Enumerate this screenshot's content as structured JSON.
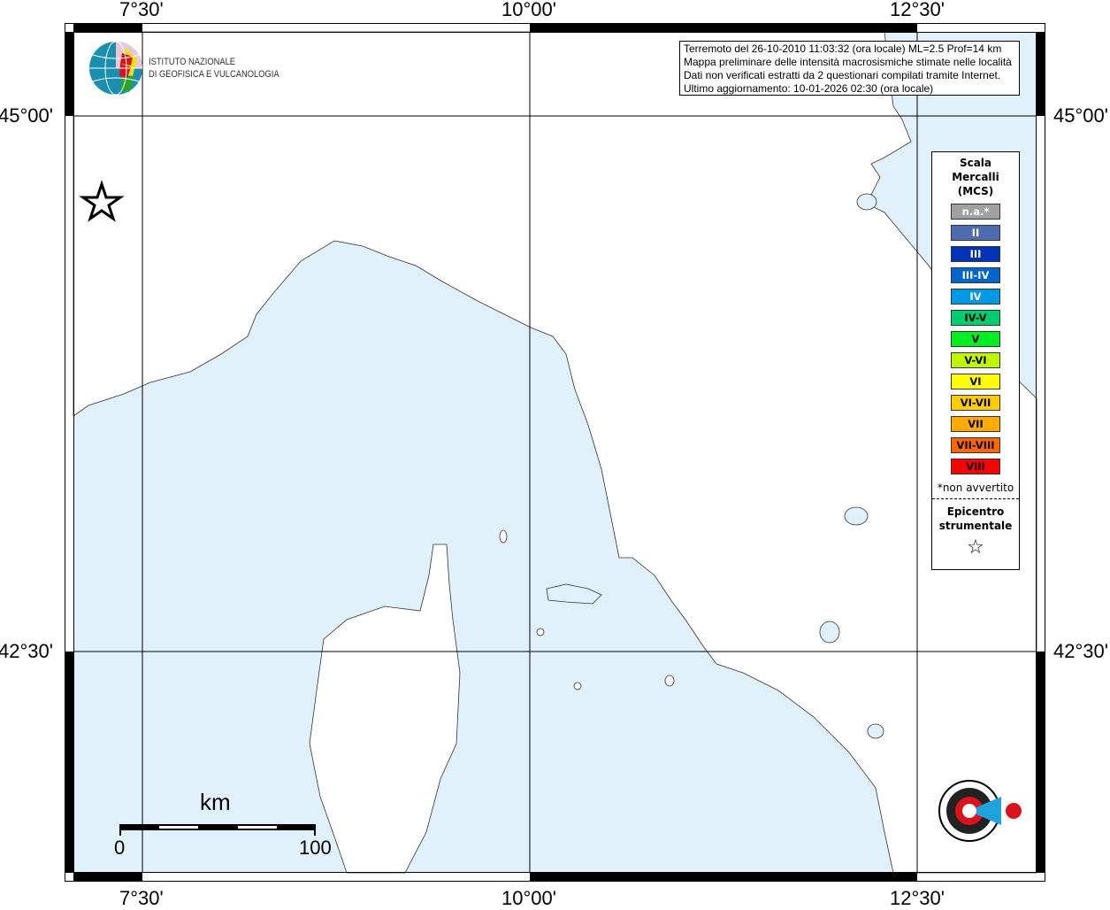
{
  "axes": {
    "lon_ticks": [
      "7°30'",
      "10°00'",
      "12°30'"
    ],
    "lat_ticks": [
      "45°00'",
      "42°30'"
    ]
  },
  "info": {
    "line1": "Terremoto del 26-10-2010 11:03:32 (ora locale) ML=2.5 Prof=14 km",
    "line2": "Mappa preliminare delle intensità macrosismiche stimate nelle località",
    "line3": "Dati non verificati estratti da 2 questionari compilati tramite Internet.",
    "line4": "Ultimo aggiornamento: 10-01-2026 02:30 (ora locale)"
  },
  "logo": {
    "line1": "ISTITUTO NAZIONALE",
    "line2": "DI GEOFISICA E VULCANOLOGIA",
    "hst": "www.haisentitoilterremoto.it"
  },
  "legend": {
    "title": [
      "Scala",
      "Mercalli",
      "(MCS)"
    ],
    "items": [
      {
        "label": "n.a.*",
        "color": "#a0a0a0",
        "text": "#ffffff"
      },
      {
        "label": "II",
        "color": "#4f6bb0",
        "text": "#ffffff"
      },
      {
        "label": "III",
        "color": "#0033b8",
        "text": "#ffffff"
      },
      {
        "label": "III-IV",
        "color": "#0066cc",
        "text": "#ffffff"
      },
      {
        "label": "IV",
        "color": "#0099e6",
        "text": "#ffffff"
      },
      {
        "label": "IV-V",
        "color": "#00cc70",
        "text": "#000000"
      },
      {
        "label": "V",
        "color": "#00ee22",
        "text": "#000000"
      },
      {
        "label": "V-VI",
        "color": "#c0f500",
        "text": "#000000"
      },
      {
        "label": "VI",
        "color": "#ffff00",
        "text": "#000000"
      },
      {
        "label": "VI-VII",
        "color": "#ffcc00",
        "text": "#000000"
      },
      {
        "label": "VII",
        "color": "#ffaa00",
        "text": "#000000"
      },
      {
        "label": "VII-VIII",
        "color": "#ff6600",
        "text": "#000000"
      },
      {
        "label": "VIII",
        "color": "#ff0000",
        "text": "#000000"
      }
    ],
    "note": "*non avvertito",
    "epicenter": [
      "Epicentro",
      "strumentale"
    ]
  },
  "scale": {
    "unit": "km",
    "min": "0",
    "max": "100"
  },
  "colors": {
    "sea": "#e1f1fc",
    "land": "#ffffff"
  }
}
